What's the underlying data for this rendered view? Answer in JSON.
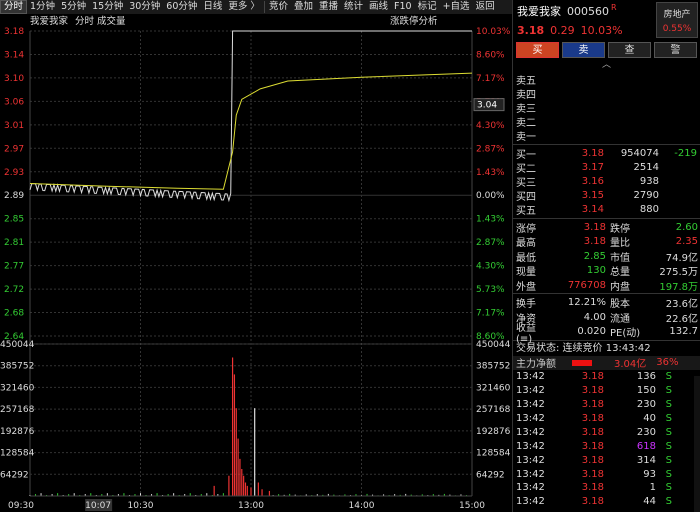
{
  "toolbar": {
    "items": [
      "分时",
      "1分钟",
      "5分钟",
      "15分钟",
      "30分钟",
      "60分钟",
      "日线",
      "更多 〉",
      "竞价",
      "叠加",
      "重播",
      "统计",
      "画线",
      "F10",
      "标记",
      "+自选",
      "返回"
    ],
    "active": "分时"
  },
  "chart": {
    "title": "我爱我家",
    "title_suffix": "分时 成交量",
    "right_label": "涨跌停分析",
    "prices": [
      "3.18",
      "3.14",
      "3.10",
      "3.06",
      "3.01",
      "2.97",
      "2.93",
      "2.89",
      "2.85",
      "2.81",
      "2.77",
      "2.72",
      "2.68",
      "2.64"
    ],
    "pcts": [
      "10.03%",
      "8.60%",
      "7.17%",
      "5.73%",
      "4.30%",
      "2.87%",
      "1.43%",
      "0.00%",
      "1.43%",
      "2.87%",
      "4.30%",
      "5.73%",
      "7.17%",
      "8.60%"
    ],
    "cursor_price": "3.04",
    "vol_left": [
      "450044",
      "385752",
      "321460",
      "257168",
      "192876",
      "128584",
      "64292"
    ],
    "vol_right": [
      "450044",
      "385752",
      "321460",
      "257168",
      "192876",
      "128584",
      "64292"
    ],
    "times": [
      "09:30",
      "10:07",
      "10:30",
      "13:00",
      "14:00",
      "15:00"
    ],
    "cursor_time": "10:07",
    "colors": {
      "up": "#e33",
      "down": "#3c3",
      "price_line": "#ddd",
      "avg_line": "#dd3"
    }
  },
  "chart_data": {
    "type": "line",
    "price_series_prev_close": 2.89,
    "price_line": [
      [
        0,
        2.89
      ],
      [
        10,
        2.885
      ],
      [
        20,
        2.882
      ],
      [
        30,
        2.88
      ],
      [
        40,
        2.878
      ],
      [
        50,
        2.875
      ],
      [
        60,
        2.874
      ],
      [
        80,
        2.872
      ],
      [
        100,
        2.87
      ],
      [
        108,
        2.871
      ],
      [
        110,
        3.18
      ],
      [
        240,
        3.18
      ]
    ],
    "avg_line": [
      [
        0,
        2.89
      ],
      [
        40,
        2.885
      ],
      [
        80,
        2.881
      ],
      [
        105,
        2.879
      ],
      [
        110,
        2.95
      ],
      [
        112,
        3.02
      ],
      [
        115,
        3.05
      ],
      [
        125,
        3.07
      ],
      [
        140,
        3.085
      ],
      [
        180,
        3.092
      ],
      [
        240,
        3.1
      ]
    ],
    "volume": [
      [
        100,
        30000
      ],
      [
        108,
        60000
      ],
      [
        110,
        410000
      ],
      [
        111,
        360000
      ],
      [
        112,
        260000
      ],
      [
        113,
        170000
      ],
      [
        114,
        110000
      ],
      [
        115,
        80000
      ],
      [
        116,
        60000
      ],
      [
        117,
        40000
      ],
      [
        118,
        30000
      ],
      [
        120,
        25000
      ],
      [
        122,
        260000
      ],
      [
        124,
        40000
      ],
      [
        126,
        20000
      ],
      [
        130,
        15000
      ]
    ]
  },
  "stock": {
    "name": "我爱我家",
    "code": "000560",
    "r": "R",
    "price": "3.18",
    "change": "0.29",
    "pct": "10.03%",
    "sector": "房地产",
    "sector_pct": "0.55%"
  },
  "buttons": [
    "买",
    "卖",
    "查",
    "警"
  ],
  "asks": [
    {
      "l": "卖五"
    },
    {
      "l": "卖四"
    },
    {
      "l": "卖三"
    },
    {
      "l": "卖二"
    },
    {
      "l": "卖一"
    }
  ],
  "bids": [
    {
      "l": "买一",
      "p": "3.18",
      "v": "954074",
      "d": "-219"
    },
    {
      "l": "买二",
      "p": "3.17",
      "v": "2514",
      "d": ""
    },
    {
      "l": "买三",
      "p": "3.16",
      "v": "938",
      "d": ""
    },
    {
      "l": "买四",
      "p": "3.15",
      "v": "2790",
      "d": ""
    },
    {
      "l": "买五",
      "p": "3.14",
      "v": "880",
      "d": ""
    }
  ],
  "stats": [
    {
      "k": "涨停",
      "v": "3.18",
      "c": "red",
      "k2": "跌停",
      "v2": "2.60",
      "c2": "green"
    },
    {
      "k": "最高",
      "v": "3.18",
      "c": "red",
      "k2": "量比",
      "v2": "2.35",
      "c2": "red"
    },
    {
      "k": "最低",
      "v": "2.85",
      "c": "green",
      "k2": "市值",
      "v2": "74.9亿",
      "c2": "white"
    },
    {
      "k": "现量",
      "v": "130",
      "c": "green",
      "k2": "总量",
      "v2": "275.5万",
      "c2": "white"
    },
    {
      "k": "外盘",
      "v": "776708",
      "c": "red",
      "k2": "内盘",
      "v2": "197.8万",
      "c2": "green"
    }
  ],
  "stats2": [
    {
      "k": "换手",
      "v": "12.21%",
      "k2": "股本",
      "v2": "23.6亿"
    },
    {
      "k": "净资",
      "v": "4.00",
      "k2": "流通",
      "v2": "22.6亿"
    },
    {
      "k": "收益(≡)",
      "v": "0.020",
      "k2": "PE(动)",
      "v2": "132.7"
    }
  ],
  "status": "交易状态: 连续竞价 13:43:42",
  "mainforce": {
    "label": "主力净额",
    "amount": "3.04亿",
    "pct": "36%"
  },
  "ticks": [
    {
      "t": "13:42",
      "p": "3.18",
      "v": "136",
      "s": "S"
    },
    {
      "t": "13:42",
      "p": "3.18",
      "v": "150",
      "s": "S"
    },
    {
      "t": "13:42",
      "p": "3.18",
      "v": "230",
      "s": "S"
    },
    {
      "t": "13:42",
      "p": "3.18",
      "v": "40",
      "s": "S"
    },
    {
      "t": "13:42",
      "p": "3.18",
      "v": "230",
      "s": "S"
    },
    {
      "t": "13:42",
      "p": "3.18",
      "v": "618",
      "s": "S",
      "purple": true
    },
    {
      "t": "13:42",
      "p": "3.18",
      "v": "314",
      "s": "S"
    },
    {
      "t": "13:42",
      "p": "3.18",
      "v": "93",
      "s": "S"
    },
    {
      "t": "13:42",
      "p": "3.18",
      "v": "1",
      "s": "S"
    },
    {
      "t": "13:42",
      "p": "3.18",
      "v": "44",
      "s": "S"
    }
  ]
}
